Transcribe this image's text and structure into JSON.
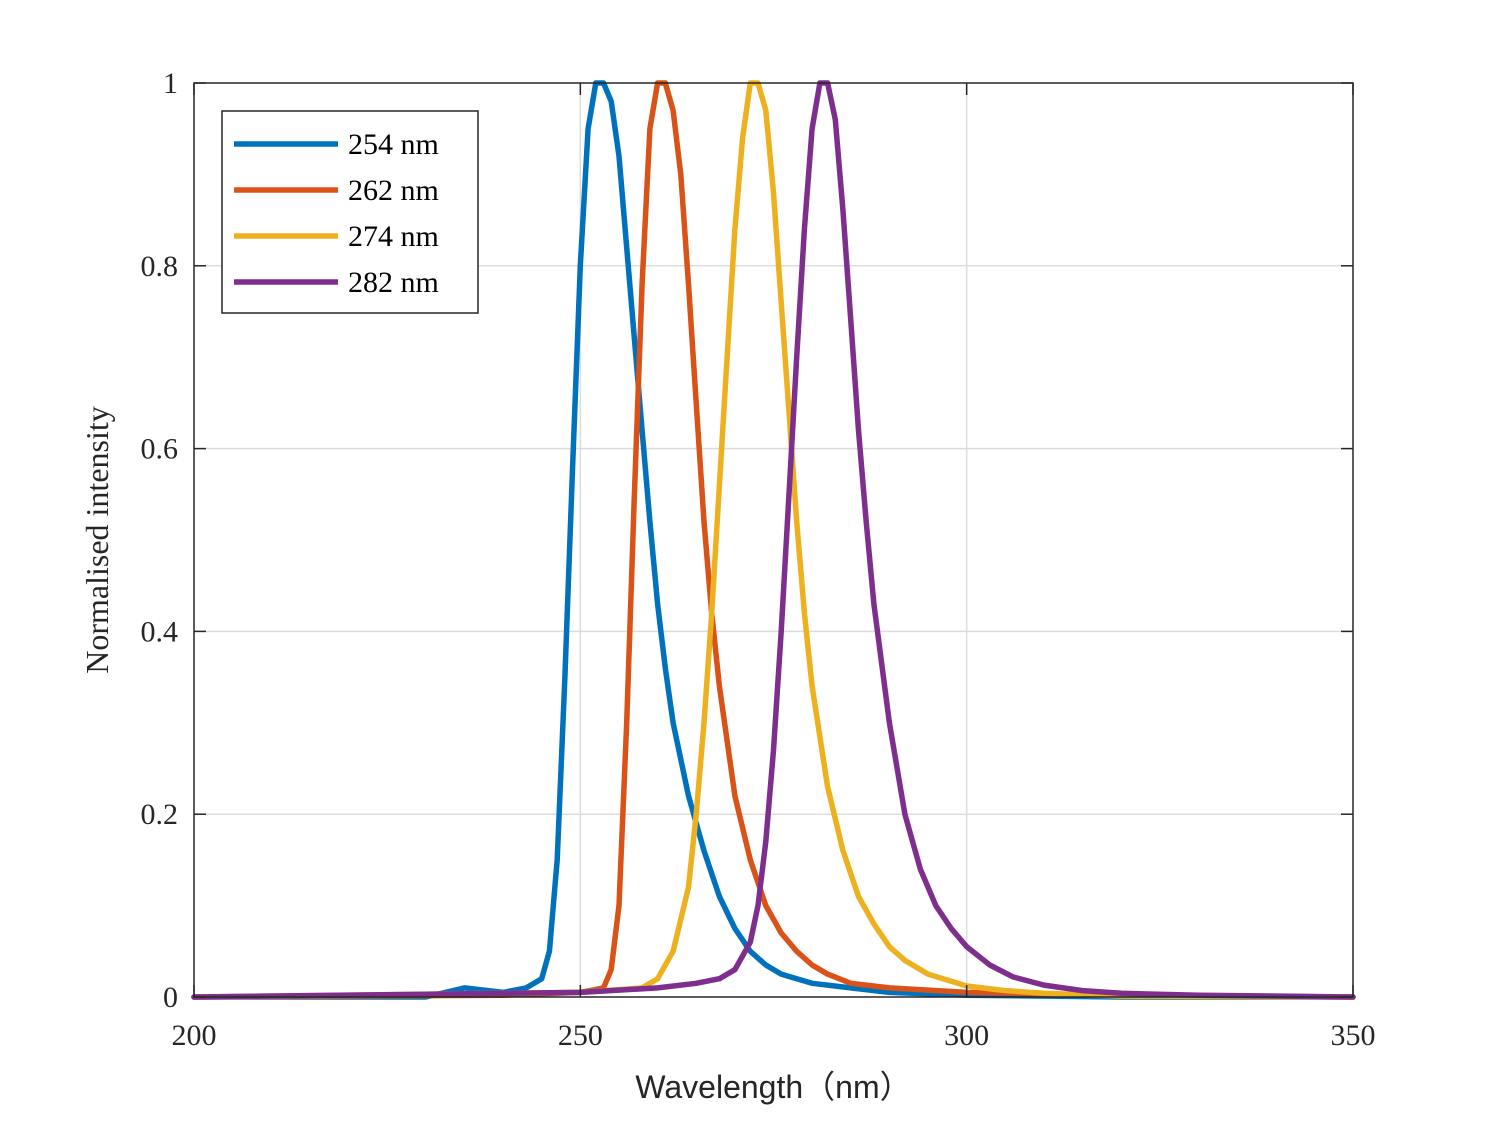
{
  "chart_data": {
    "type": "line",
    "title": "",
    "xlabel": "Wavelength（nm）",
    "ylabel": "Normalised intensity",
    "xlim": [
      200,
      350
    ],
    "ylim": [
      0,
      1
    ],
    "xticks": [
      200,
      250,
      300,
      350
    ],
    "xtick_labels": [
      "200",
      "250",
      "300",
      "350"
    ],
    "yticks": [
      0,
      0.2,
      0.4,
      0.6,
      0.8,
      1
    ],
    "ytick_labels": [
      "0",
      "0.2",
      "0.4",
      "0.6",
      "0.8",
      "1"
    ],
    "grid": true,
    "legend_position": "top-left",
    "series": [
      {
        "name": "254 nm",
        "color": "#0072BD",
        "x": [
          200,
          230,
          235,
          240,
          243,
          245,
          246,
          247,
          248,
          249,
          250,
          251,
          252,
          253,
          254,
          255,
          256,
          257,
          258,
          259,
          260,
          261,
          262,
          264,
          266,
          268,
          270,
          272,
          274,
          276,
          278,
          280,
          285,
          290,
          300,
          320,
          350
        ],
        "values": [
          0.0,
          0.0,
          0.01,
          0.005,
          0.01,
          0.02,
          0.05,
          0.15,
          0.35,
          0.58,
          0.8,
          0.95,
          1.0,
          1.0,
          0.98,
          0.92,
          0.82,
          0.72,
          0.62,
          0.52,
          0.43,
          0.36,
          0.3,
          0.22,
          0.16,
          0.11,
          0.075,
          0.05,
          0.035,
          0.025,
          0.02,
          0.015,
          0.01,
          0.005,
          0.002,
          0.0,
          0.0
        ]
      },
      {
        "name": "262 nm",
        "color": "#D95319",
        "x": [
          200,
          240,
          250,
          253,
          254,
          255,
          256,
          257,
          258,
          259,
          260,
          261,
          262,
          263,
          264,
          265,
          266,
          267,
          268,
          270,
          272,
          274,
          276,
          278,
          280,
          282,
          285,
          290,
          300,
          320,
          350
        ],
        "values": [
          0.0,
          0.002,
          0.005,
          0.01,
          0.03,
          0.1,
          0.3,
          0.55,
          0.78,
          0.95,
          1.0,
          1.0,
          0.97,
          0.9,
          0.78,
          0.65,
          0.52,
          0.42,
          0.34,
          0.22,
          0.15,
          0.1,
          0.07,
          0.05,
          0.035,
          0.025,
          0.015,
          0.01,
          0.005,
          0.002,
          0.0
        ]
      },
      {
        "name": "274 nm",
        "color": "#EDB120",
        "x": [
          200,
          250,
          258,
          260,
          262,
          264,
          265,
          266,
          267,
          268,
          269,
          270,
          271,
          272,
          273,
          274,
          275,
          276,
          277,
          278,
          279,
          280,
          282,
          284,
          286,
          288,
          290,
          292,
          295,
          300,
          305,
          310,
          320,
          350
        ],
        "values": [
          0.0,
          0.005,
          0.01,
          0.02,
          0.05,
          0.12,
          0.2,
          0.3,
          0.42,
          0.56,
          0.7,
          0.84,
          0.94,
          1.0,
          1.0,
          0.97,
          0.88,
          0.76,
          0.64,
          0.52,
          0.42,
          0.34,
          0.23,
          0.16,
          0.11,
          0.08,
          0.055,
          0.04,
          0.025,
          0.012,
          0.007,
          0.004,
          0.001,
          0.0
        ]
      },
      {
        "name": "282 nm",
        "color": "#7E2F8E",
        "x": [
          200,
          250,
          260,
          265,
          268,
          270,
          272,
          273,
          274,
          275,
          276,
          277,
          278,
          279,
          280,
          281,
          282,
          283,
          284,
          285,
          286,
          287,
          288,
          290,
          292,
          294,
          296,
          298,
          300,
          303,
          306,
          310,
          315,
          320,
          330,
          350
        ],
        "values": [
          0.0,
          0.005,
          0.01,
          0.015,
          0.02,
          0.03,
          0.06,
          0.1,
          0.17,
          0.27,
          0.4,
          0.55,
          0.7,
          0.84,
          0.95,
          1.0,
          1.0,
          0.96,
          0.86,
          0.74,
          0.62,
          0.52,
          0.43,
          0.3,
          0.2,
          0.14,
          0.1,
          0.075,
          0.055,
          0.035,
          0.022,
          0.013,
          0.007,
          0.004,
          0.002,
          0.0
        ]
      }
    ]
  }
}
